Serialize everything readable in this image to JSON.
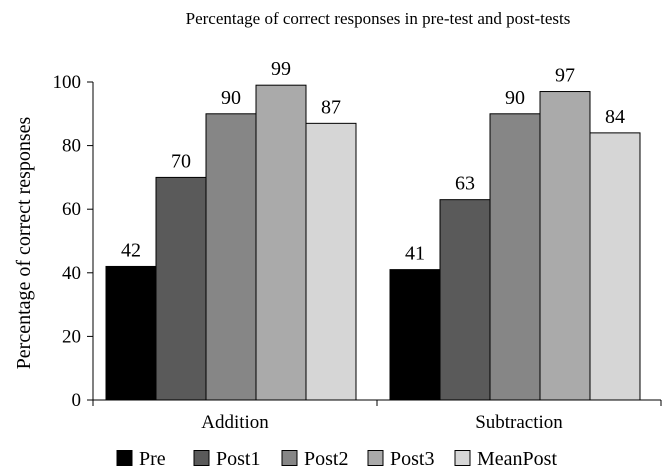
{
  "chart_data": {
    "type": "bar",
    "title": "Percentage of correct responses in pre-test and post-tests",
    "xlabel": "",
    "ylabel": "Percentage of correct responses",
    "ylim": [
      0,
      100
    ],
    "yticks": [
      0,
      20,
      40,
      60,
      80,
      100
    ],
    "grid": false,
    "legend_position": "bottom",
    "categories": [
      "Addition",
      "Subtraction"
    ],
    "series": [
      {
        "name": "Pre",
        "color": "#000000",
        "values": [
          42,
          41
        ]
      },
      {
        "name": "Post1",
        "color": "#5a5a5a",
        "values": [
          70,
          63
        ]
      },
      {
        "name": "Post2",
        "color": "#868686",
        "values": [
          90,
          90
        ]
      },
      {
        "name": "Post3",
        "color": "#aaaaaa",
        "values": [
          99,
          97
        ]
      },
      {
        "name": "MeanPost",
        "color": "#d6d6d6",
        "values": [
          87,
          84
        ]
      }
    ]
  }
}
